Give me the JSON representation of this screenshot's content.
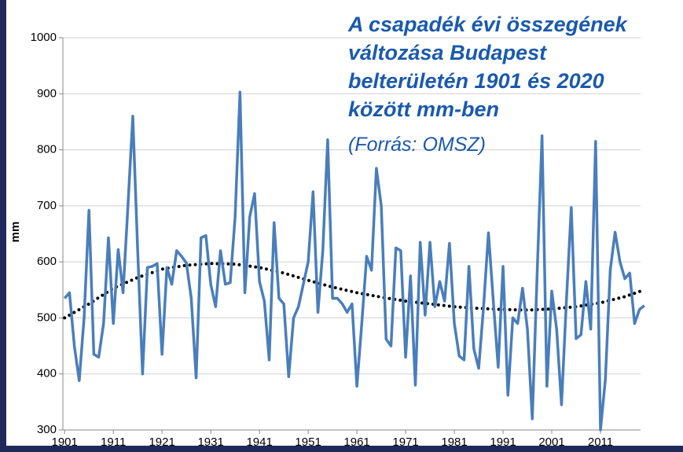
{
  "chart_data": {
    "type": "line",
    "title": [
      "A csapadék évi összegének",
      "változása Budapest",
      "belterületén 1901 és 2020",
      "között mm-ben"
    ],
    "subtitle": "(Forrás: OMSZ)",
    "ylabel": "mm",
    "x": [
      1901,
      1902,
      1903,
      1904,
      1905,
      1906,
      1907,
      1908,
      1909,
      1910,
      1911,
      1912,
      1913,
      1914,
      1915,
      1916,
      1917,
      1918,
      1919,
      1920,
      1921,
      1922,
      1923,
      1924,
      1925,
      1926,
      1927,
      1928,
      1929,
      1930,
      1931,
      1932,
      1933,
      1934,
      1935,
      1936,
      1937,
      1938,
      1939,
      1940,
      1941,
      1942,
      1943,
      1944,
      1945,
      1946,
      1947,
      1948,
      1949,
      1950,
      1951,
      1952,
      1953,
      1954,
      1955,
      1956,
      1957,
      1958,
      1959,
      1960,
      1961,
      1962,
      1963,
      1964,
      1965,
      1966,
      1967,
      1968,
      1969,
      1970,
      1971,
      1972,
      1973,
      1974,
      1975,
      1976,
      1977,
      1978,
      1979,
      1980,
      1981,
      1982,
      1983,
      1984,
      1985,
      1986,
      1987,
      1988,
      1989,
      1990,
      1991,
      1992,
      1993,
      1994,
      1995,
      1996,
      1997,
      1998,
      1999,
      2000,
      2001,
      2002,
      2003,
      2004,
      2005,
      2006,
      2007,
      2008,
      2009,
      2010,
      2011,
      2012,
      2013,
      2014,
      2015,
      2016,
      2017,
      2018,
      2019,
      2020
    ],
    "series": [
      {
        "color": "#4a7ebb",
        "values": [
          535,
          545,
          450,
          388,
          500,
          692,
          435,
          430,
          490,
          643,
          490,
          622,
          545,
          700,
          860,
          620,
          400,
          590,
          592,
          597,
          435,
          590,
          560,
          620,
          610,
          598,
          535,
          393,
          643,
          647,
          560,
          520,
          620,
          560,
          563,
          680,
          903,
          545,
          680,
          722,
          565,
          530,
          425,
          670,
          535,
          525,
          395,
          500,
          520,
          560,
          600,
          725,
          510,
          620,
          818,
          535,
          535,
          525,
          510,
          525,
          378,
          490,
          610,
          585,
          767,
          700,
          462,
          450,
          625,
          620,
          430,
          575,
          380,
          635,
          505,
          635,
          520,
          565,
          530,
          633,
          490,
          432,
          425,
          592,
          445,
          410,
          520,
          652,
          530,
          412,
          592,
          362,
          500,
          490,
          553,
          480,
          320,
          580,
          825,
          378,
          548,
          480,
          345,
          530,
          697,
          463,
          470,
          565,
          480,
          815,
          300,
          390,
          585,
          653,
          600,
          570,
          580,
          490,
          515,
          522
        ]
      },
      {
        "color": "#000000",
        "dotted": true,
        "x": [
          1901,
          1906,
          1911,
          1916,
          1921,
          1926,
          1931,
          1936,
          1941,
          1946,
          1951,
          1956,
          1961,
          1966,
          1971,
          1976,
          1981,
          1986,
          1991,
          1996,
          2001,
          2006,
          2011,
          2016,
          2020
        ],
        "values": [
          500,
          525,
          553,
          572,
          587,
          594,
          597,
          596,
          590,
          580,
          567,
          555,
          545,
          537,
          530,
          525,
          520,
          517,
          515,
          514,
          516,
          520,
          527,
          538,
          550
        ]
      }
    ],
    "xlim": [
      1900,
      2021
    ],
    "xticks": [
      1901,
      1911,
      1921,
      1931,
      1941,
      1951,
      1961,
      1971,
      1981,
      1991,
      2001,
      2011
    ],
    "ylim": [
      300,
      1000
    ],
    "yticks": [
      300,
      400,
      500,
      600,
      700,
      800,
      900,
      1000
    ],
    "grid": true
  }
}
